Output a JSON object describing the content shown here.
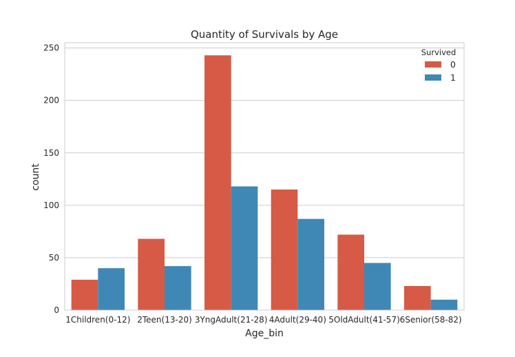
{
  "chart_data": {
    "type": "bar",
    "title": "Quantity of Survivals by Age",
    "xlabel": "Age_bin",
    "ylabel": "count",
    "categories": [
      "1Children(0-12)",
      "2Teen(13-20)",
      "3YngAdult(21-28)",
      "4Adult(29-40)",
      "5OldAdult(41-57)",
      "6Senior(58-82)"
    ],
    "series": [
      {
        "name": "0",
        "color": "#d65a46",
        "values": [
          29,
          68,
          243,
          115,
          72,
          23
        ]
      },
      {
        "name": "1",
        "color": "#3f88b5",
        "values": [
          40,
          42,
          118,
          87,
          45,
          10
        ]
      }
    ],
    "ylim": [
      0,
      255
    ],
    "yticks": [
      0,
      50,
      100,
      150,
      200,
      250
    ],
    "legend": {
      "title": "Survived",
      "placement": "top-right"
    },
    "grid": "horizontal"
  }
}
